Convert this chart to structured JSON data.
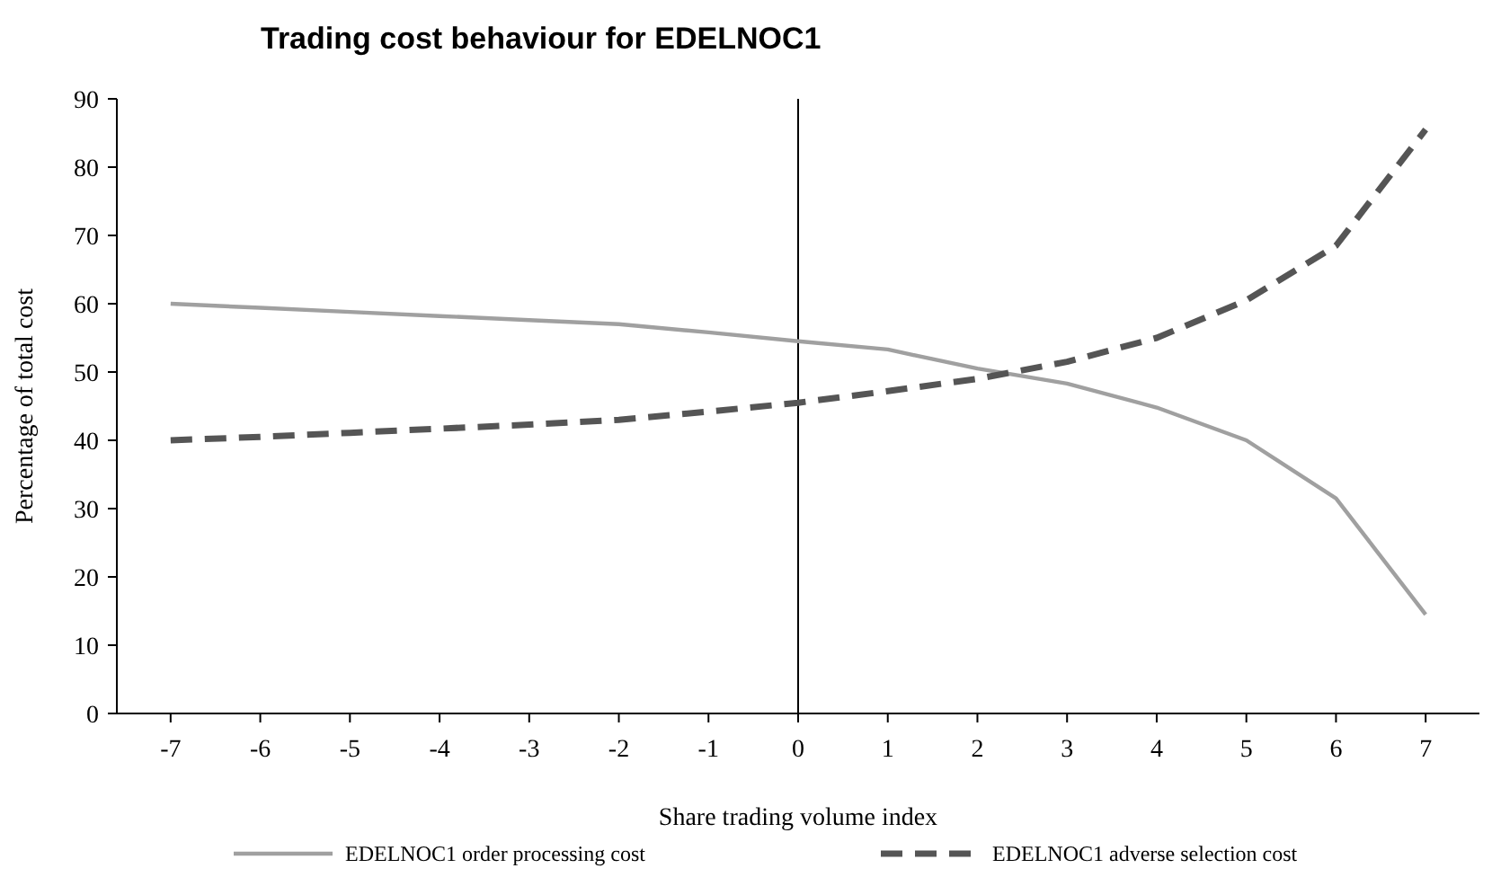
{
  "chart_data": {
    "type": "line",
    "title": "Trading cost behaviour for EDELNOC1",
    "xlabel": "Share trading volume index",
    "ylabel": "Percentage of total cost",
    "x": [
      -7,
      -6,
      -5,
      -4,
      -3,
      -2,
      -1,
      0,
      1,
      2,
      3,
      4,
      5,
      6,
      7
    ],
    "series": [
      {
        "name": "EDELNOC1 order processing cost",
        "color": "#a0a0a0",
        "line_style": "solid",
        "values": [
          60,
          59.4,
          58.8,
          58.2,
          57.6,
          57,
          55.8,
          54.5,
          53.3,
          50.5,
          48.3,
          44.8,
          40,
          31.5,
          14.5
        ]
      },
      {
        "name": "EDELNOC1 adverse selection cost",
        "color": "#555555",
        "line_style": "dashed",
        "values": [
          40,
          40.5,
          41.1,
          41.7,
          42.3,
          43,
          44.2,
          45.5,
          47.2,
          49,
          51.5,
          55,
          60.5,
          68.5,
          85.5
        ]
      }
    ],
    "xlim": [
      -7.6,
      7.6
    ],
    "xticks": [
      -7,
      -6,
      -5,
      -4,
      -3,
      -2,
      -1,
      0,
      1,
      2,
      3,
      4,
      5,
      6,
      7
    ],
    "ylim": [
      0,
      90
    ],
    "yticks": [
      0,
      10,
      20,
      30,
      40,
      50,
      60,
      70,
      80,
      90
    ],
    "ref_lines": [
      {
        "axis": "x",
        "value": 0,
        "color": "#000000"
      }
    ],
    "grid": false,
    "legend": "bottom",
    "marker": "none"
  }
}
